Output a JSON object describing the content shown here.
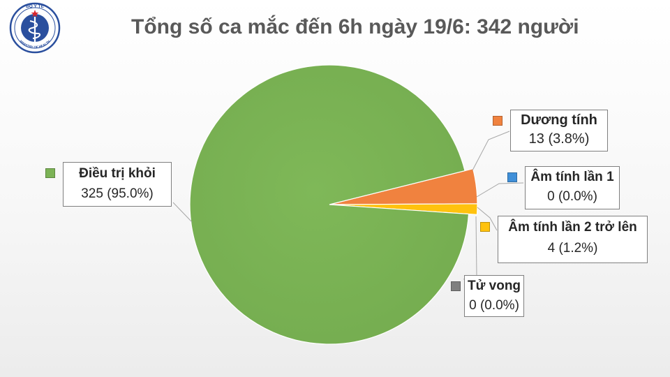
{
  "title": "Tổng số ca mắc đến 6h ngày 19/6: 342 người",
  "logo": {
    "top_text": "BỘ Y TẾ",
    "bottom_text": "MINISTRY OF HEALTH",
    "icon": "ministry-of-health-caduceus-icon"
  },
  "chart_data": {
    "type": "pie",
    "title": "Tổng số ca mắc đến 6h ngày 19/6: 342 người",
    "total": 342,
    "slices": [
      {
        "name": "Điều trị khỏi",
        "value": 325,
        "percent": "95.0%",
        "value_label": "325 (95.0%)",
        "color": "#7cb356"
      },
      {
        "name": "Dương tính",
        "value": 13,
        "percent": "3.8%",
        "value_label": "13 (3.8%)",
        "color": "#f0823f"
      },
      {
        "name": "Âm tính lần 1",
        "value": 0,
        "percent": "0.0%",
        "value_label": "0 (0.0%)",
        "color": "#3f8fd8"
      },
      {
        "name": "Âm tính lần 2 trở lên",
        "value": 4,
        "percent": "1.2%",
        "value_label": "4 (1.2%)",
        "color": "#ffc20e"
      },
      {
        "name": "Tử vong",
        "value": 0,
        "percent": "0.0%",
        "value_label": "0 (0.0%)",
        "color": "#7f7f7f"
      }
    ]
  }
}
